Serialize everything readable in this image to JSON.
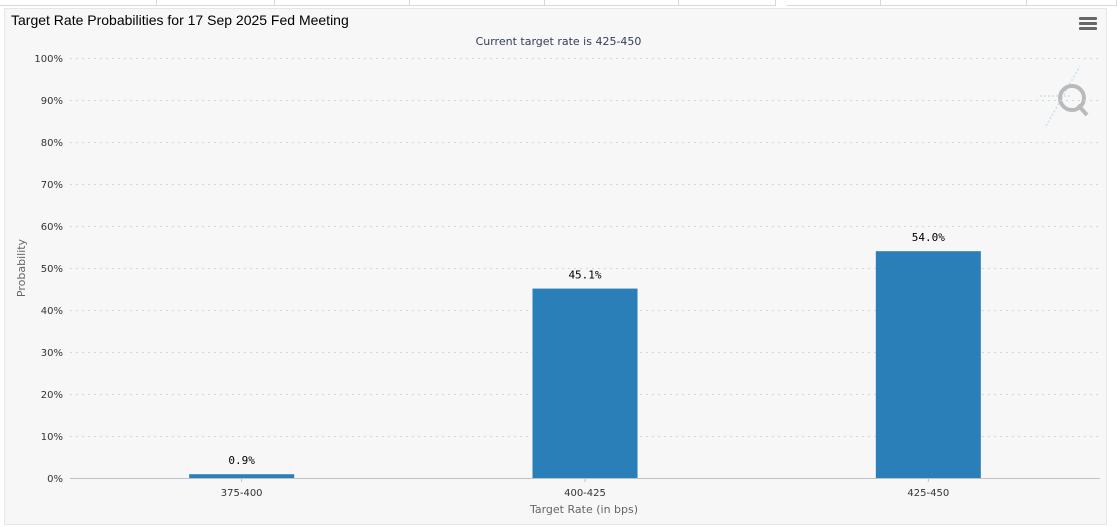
{
  "header": {
    "title": "Target Rate Probabilities for 17 Sep 2025 Fed Meeting",
    "subtitle": "Current target rate is 425-450",
    "menu_icon": "hamburger-menu-icon",
    "watermark_icon": "q-logo-icon"
  },
  "chart_data": {
    "type": "bar",
    "title": "Target Rate Probabilities for 17 Sep 2025 Fed Meeting",
    "subtitle": "Current target rate is 425-450",
    "categories": [
      "375-400",
      "400-425",
      "425-450"
    ],
    "values": [
      0.9,
      45.1,
      54.0
    ],
    "value_labels": [
      "0.9%",
      "45.1%",
      "54.0%"
    ],
    "xlabel": "Target Rate (in bps)",
    "ylabel": "Probability",
    "ylim": [
      0,
      100
    ],
    "yticks": [
      0,
      10,
      20,
      30,
      40,
      50,
      60,
      70,
      80,
      90,
      100
    ],
    "ytick_labels": [
      "0%",
      "10%",
      "20%",
      "30%",
      "40%",
      "50%",
      "60%",
      "70%",
      "80%",
      "90%",
      "100%"
    ],
    "grid": true,
    "legend": "none",
    "bar_color": "#2a7fb8"
  }
}
